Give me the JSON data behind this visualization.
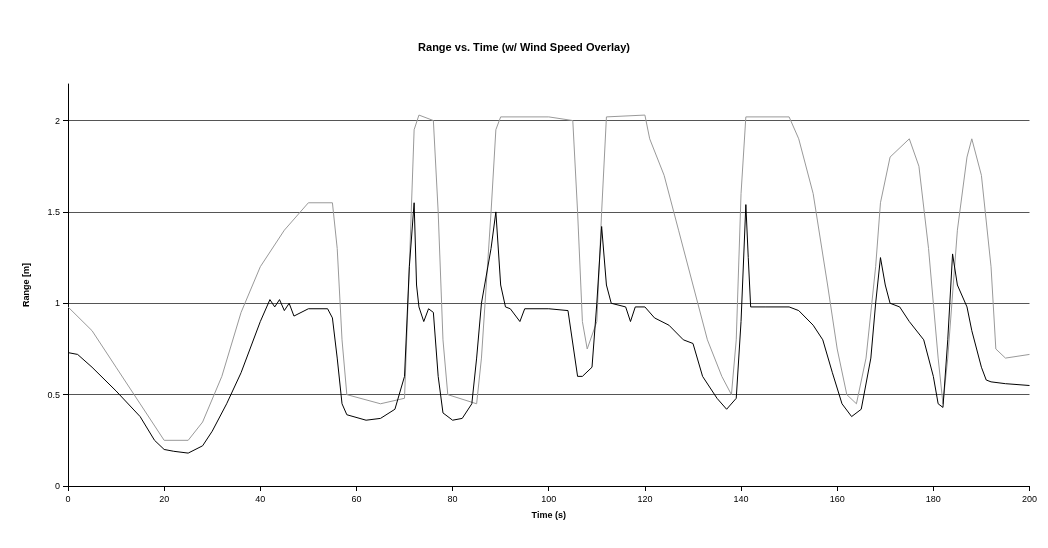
{
  "chart_data": {
    "type": "line",
    "title": "Range vs. Time (w/ Wind Speed Overlay)",
    "xlabel": "Time (s)",
    "ylabel": "Range [m]",
    "xlim": [
      0,
      200
    ],
    "xticks": [
      0,
      20,
      40,
      60,
      80,
      100,
      120,
      140,
      160,
      180,
      200
    ],
    "ylim": [
      0,
      2.2
    ],
    "yticks": [
      0,
      0.5,
      1,
      1.5,
      2
    ],
    "grid": "y",
    "marker": "none",
    "line_style": "solid",
    "series": [
      {
        "color": "#999999",
        "x": [
          0,
          5,
          10,
          15,
          20,
          25,
          28,
          32,
          36,
          40,
          45,
          50,
          55,
          56,
          57,
          58,
          65,
          70,
          71,
          72,
          73,
          76,
          77,
          78,
          79,
          85,
          86,
          88,
          89,
          90,
          100,
          105,
          106,
          107,
          108,
          110,
          111,
          112,
          120,
          121,
          124,
          127,
          130,
          133,
          136,
          138,
          139,
          140,
          141,
          150,
          152,
          155,
          158,
          160,
          162,
          164,
          166,
          168,
          169,
          171,
          175,
          177,
          179,
          181,
          182,
          183,
          185,
          187,
          188,
          190,
          192,
          193,
          195,
          200
        ],
        "values": [
          0.98,
          0.85,
          0.65,
          0.45,
          0.25,
          0.25,
          0.35,
          0.6,
          0.95,
          1.2,
          1.4,
          1.55,
          1.55,
          1.3,
          0.8,
          0.5,
          0.45,
          0.48,
          1.2,
          1.95,
          2.03,
          2.0,
          1.5,
          0.8,
          0.5,
          0.45,
          0.7,
          1.5,
          1.95,
          2.02,
          2.02,
          2.0,
          1.5,
          0.9,
          0.75,
          0.9,
          1.5,
          2.02,
          2.03,
          1.9,
          1.7,
          1.4,
          1.1,
          0.8,
          0.6,
          0.5,
          0.8,
          1.6,
          2.02,
          2.02,
          1.9,
          1.6,
          1.1,
          0.75,
          0.5,
          0.45,
          0.7,
          1.2,
          1.55,
          1.8,
          1.9,
          1.75,
          1.3,
          0.7,
          0.45,
          0.7,
          1.4,
          1.8,
          1.9,
          1.7,
          1.2,
          0.75,
          0.7,
          0.72
        ]
      },
      {
        "color": "#000000",
        "x": [
          0,
          2,
          5,
          10,
          15,
          18,
          20,
          22,
          25,
          28,
          30,
          33,
          36,
          40,
          42,
          43,
          44,
          45,
          46,
          47,
          50,
          54,
          55,
          56,
          57,
          58,
          62,
          65,
          68,
          70,
          71,
          72,
          72.5,
          73,
          74,
          75,
          76,
          77,
          78,
          80,
          82,
          84,
          85,
          86,
          88,
          89,
          90,
          91,
          92,
          94,
          95,
          100,
          104,
          106,
          107,
          109,
          110,
          111,
          112,
          113,
          116,
          117,
          118,
          120,
          122,
          125,
          128,
          130,
          132,
          135,
          137,
          139,
          140,
          141,
          141.5,
          142,
          145,
          150,
          152,
          155,
          157,
          159,
          161,
          163,
          165,
          167,
          168,
          169,
          170,
          171,
          173,
          175,
          178,
          180,
          181,
          182,
          183,
          184,
          185,
          187,
          188,
          190,
          191,
          192,
          195,
          200
        ],
        "values": [
          0.73,
          0.72,
          0.65,
          0.52,
          0.38,
          0.25,
          0.2,
          0.19,
          0.18,
          0.22,
          0.3,
          0.45,
          0.62,
          0.9,
          1.02,
          0.98,
          1.02,
          0.96,
          1.0,
          0.93,
          0.97,
          0.97,
          0.92,
          0.7,
          0.45,
          0.39,
          0.36,
          0.37,
          0.42,
          0.6,
          1.2,
          1.55,
          1.1,
          0.98,
          0.9,
          0.97,
          0.95,
          0.6,
          0.4,
          0.36,
          0.37,
          0.45,
          0.7,
          1.0,
          1.3,
          1.5,
          1.1,
          0.98,
          0.97,
          0.9,
          0.97,
          0.97,
          0.96,
          0.6,
          0.6,
          0.65,
          1.0,
          1.42,
          1.1,
          1.0,
          0.98,
          0.9,
          0.98,
          0.98,
          0.92,
          0.88,
          0.8,
          0.78,
          0.6,
          0.48,
          0.42,
          0.48,
          0.9,
          1.54,
          1.25,
          0.98,
          0.98,
          0.98,
          0.96,
          0.88,
          0.8,
          0.62,
          0.45,
          0.38,
          0.42,
          0.7,
          1.0,
          1.25,
          1.1,
          1.0,
          0.98,
          0.9,
          0.8,
          0.6,
          0.45,
          0.43,
          0.8,
          1.27,
          1.1,
          0.98,
          0.85,
          0.65,
          0.58,
          0.57,
          0.56,
          0.55
        ]
      }
    ]
  }
}
